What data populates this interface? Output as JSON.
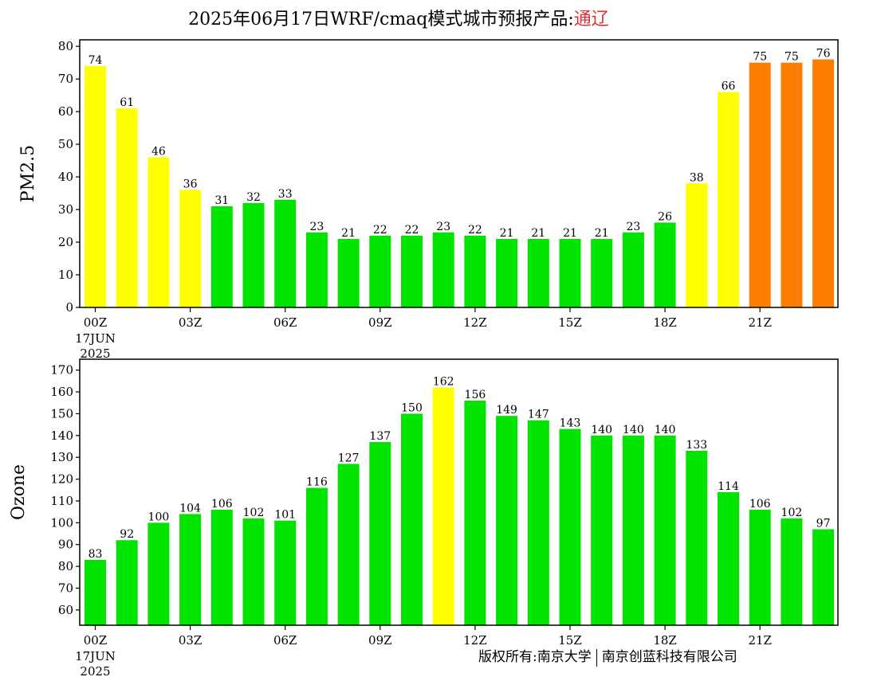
{
  "header": {
    "title_main": "2025年06月17日WRF/cmaq模式城市预报产品:",
    "city": "通辽"
  },
  "footer": {
    "copyright_left": "版权所有:南京大学",
    "copyright_right": "南京创蓝科技有限公司"
  },
  "colors": {
    "green": "#00e400",
    "yellow": "#ffff00",
    "orange": "#ff7e00"
  },
  "chart_data": [
    {
      "type": "bar",
      "ylabel": "PM2.5",
      "ylim": [
        0,
        82
      ],
      "yticks": [
        0,
        10,
        20,
        30,
        40,
        50,
        60,
        70,
        80
      ],
      "x_tick_labels": [
        {
          "index": 0,
          "label": "00Z"
        },
        {
          "index": 3,
          "label": "03Z"
        },
        {
          "index": 6,
          "label": "06Z"
        },
        {
          "index": 9,
          "label": "09Z"
        },
        {
          "index": 12,
          "label": "12Z"
        },
        {
          "index": 15,
          "label": "15Z"
        },
        {
          "index": 18,
          "label": "18Z"
        },
        {
          "index": 21,
          "label": "21Z"
        }
      ],
      "date_label": [
        "17JUN",
        "2025"
      ],
      "values": [
        74,
        61,
        46,
        36,
        31,
        32,
        33,
        23,
        21,
        22,
        22,
        23,
        22,
        21,
        21,
        21,
        21,
        23,
        26,
        38,
        66,
        75,
        75,
        76
      ],
      "bar_colors": [
        "yellow",
        "yellow",
        "yellow",
        "yellow",
        "green",
        "green",
        "green",
        "green",
        "green",
        "green",
        "green",
        "green",
        "green",
        "green",
        "green",
        "green",
        "green",
        "green",
        "green",
        "yellow",
        "yellow",
        "orange",
        "orange",
        "orange"
      ],
      "grid": false
    },
    {
      "type": "bar",
      "ylabel": "Ozone",
      "ylim": [
        53,
        175
      ],
      "yticks": [
        60,
        70,
        80,
        90,
        100,
        110,
        120,
        130,
        140,
        150,
        160,
        170
      ],
      "x_tick_labels": [
        {
          "index": 0,
          "label": "00Z"
        },
        {
          "index": 3,
          "label": "03Z"
        },
        {
          "index": 6,
          "label": "06Z"
        },
        {
          "index": 9,
          "label": "09Z"
        },
        {
          "index": 12,
          "label": "12Z"
        },
        {
          "index": 15,
          "label": "15Z"
        },
        {
          "index": 18,
          "label": "18Z"
        },
        {
          "index": 21,
          "label": "21Z"
        }
      ],
      "date_label": [
        "17JUN",
        "2025"
      ],
      "values": [
        83,
        92,
        100,
        104,
        106,
        102,
        101,
        116,
        127,
        137,
        150,
        162,
        156,
        149,
        147,
        143,
        140,
        140,
        140,
        133,
        114,
        106,
        102,
        97
      ],
      "bar_colors": [
        "green",
        "green",
        "green",
        "green",
        "green",
        "green",
        "green",
        "green",
        "green",
        "green",
        "green",
        "yellow",
        "green",
        "green",
        "green",
        "green",
        "green",
        "green",
        "green",
        "green",
        "green",
        "green",
        "green",
        "green"
      ],
      "grid": false
    }
  ]
}
